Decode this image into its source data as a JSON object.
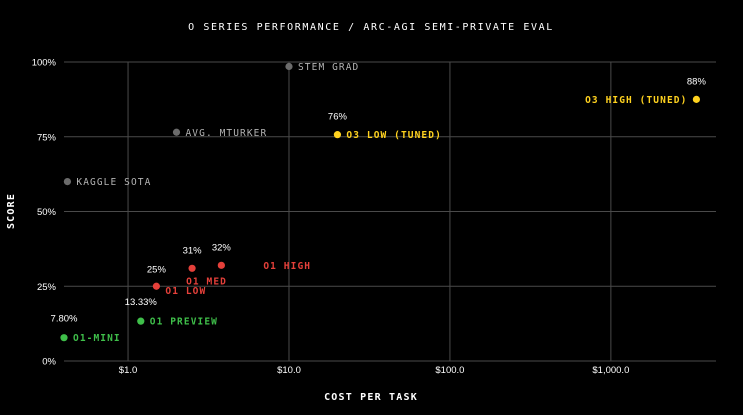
{
  "chart_data": {
    "type": "scatter",
    "title": "O SERIES PERFORMANCE / ARC-AGI SEMI-PRIVATE EVAL",
    "xlabel": "COST PER TASK",
    "ylabel": "SCORE",
    "x_scale": "log",
    "xlim": [
      0.4,
      4500
    ],
    "ylim": [
      0,
      100
    ],
    "grid": true,
    "x_ticks": [
      {
        "value": 1,
        "label": "$1.0"
      },
      {
        "value": 10,
        "label": "$10.0"
      },
      {
        "value": 100,
        "label": "$100.0"
      },
      {
        "value": 1000,
        "label": "$1,000.0"
      }
    ],
    "y_ticks": [
      {
        "value": 0,
        "label": "0%"
      },
      {
        "value": 25,
        "label": "25%"
      },
      {
        "value": 50,
        "label": "50%"
      },
      {
        "value": 75,
        "label": "75%"
      },
      {
        "value": 100,
        "label": "100%"
      }
    ],
    "points": [
      {
        "name": "STEM GRAD",
        "x": 10,
        "y": 98.5,
        "value_label": "",
        "color": "#6b6b6b",
        "label_color": "#b3b3b3"
      },
      {
        "name": "AVG. MTURKER",
        "x": 2.0,
        "y": 76.5,
        "value_label": "",
        "color": "#6b6b6b",
        "label_color": "#b3b3b3"
      },
      {
        "name": "KAGGLE SOTA",
        "x": 0.42,
        "y": 60,
        "value_label": "",
        "color": "#6b6b6b",
        "label_color": "#b3b3b3"
      },
      {
        "name": "O3 HIGH (TUNED)",
        "x": 3400,
        "y": 87.5,
        "value_label": "88%",
        "color": "#ffd21f",
        "label_color": "#ffd21f"
      },
      {
        "name": "O3 LOW (TUNED)",
        "x": 20,
        "y": 75.7,
        "value_label": "76%",
        "color": "#ffd21f",
        "label_color": "#ffd21f"
      },
      {
        "name": "O1 HIGH",
        "x": 3.8,
        "y": 32,
        "value_label": "32%",
        "color": "#e5403a",
        "label_color": "#e5403a"
      },
      {
        "name": "O1 MED",
        "x": 2.5,
        "y": 31,
        "value_label": "31%",
        "color": "#e5403a",
        "label_color": "#e5403a"
      },
      {
        "name": "O1 LOW",
        "x": 1.5,
        "y": 25,
        "value_label": "25%",
        "color": "#e5403a",
        "label_color": "#e5403a"
      },
      {
        "name": "O1 PREVIEW",
        "x": 1.2,
        "y": 13.33,
        "value_label": "13.33%",
        "color": "#3fbf4a",
        "label_color": "#3fbf4a"
      },
      {
        "name": "O1-MINI",
        "x": 0.4,
        "y": 7.8,
        "value_label": "7.80%",
        "color": "#3fbf4a",
        "label_color": "#3fbf4a"
      }
    ]
  },
  "colors": {
    "background": "#000000",
    "grid": "#4a4a4a",
    "text": "#ffffff",
    "reference": "#6b6b6b",
    "o3": "#ffd21f",
    "o1": "#e5403a",
    "o1_preview_mini": "#3fbf4a"
  }
}
